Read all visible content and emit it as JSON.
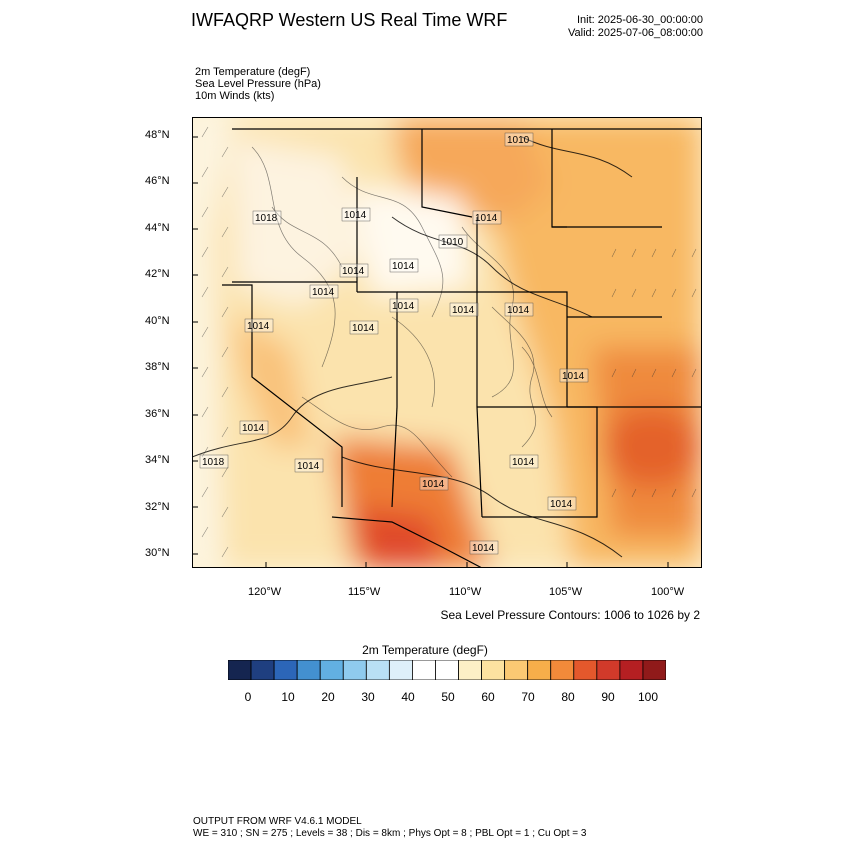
{
  "header": {
    "title": "IWFAQRP Western US Real Time WRF",
    "init": "Init: 2025-06-30_00:00:00",
    "valid": "Valid: 2025-07-06_08:00:00"
  },
  "fields": {
    "line1": "2m Temperature   (degF)",
    "line2": "Sea Level Pressure   (hPa)",
    "line3": "10m Winds   (kts)"
  },
  "axes": {
    "lat_labels": [
      "48°N",
      "46°N",
      "44°N",
      "42°N",
      "40°N",
      "38°N",
      "36°N",
      "34°N",
      "32°N",
      "30°N"
    ],
    "lon_labels": [
      "120°W",
      "115°W",
      "110°W",
      "105°W",
      "100°W"
    ]
  },
  "isobar_labels": [
    "1010",
    "1018",
    "1014",
    "1014",
    "1010",
    "1014",
    "1014",
    "1014",
    "1014",
    "1014",
    "1014",
    "1014",
    "1014",
    "1014",
    "1014",
    "1014",
    "1018",
    "1014",
    "1014",
    "1014",
    "1014"
  ],
  "contour_note": "Sea Level Pressure Contours: 1006 to 1026 by 2",
  "colorbar": {
    "title": "2m Temperature  (degF)",
    "labels": [
      "0",
      "10",
      "20",
      "30",
      "40",
      "50",
      "60",
      "70",
      "80",
      "90",
      "100"
    ],
    "colors": [
      "#152550",
      "#1f3f80",
      "#2c66b8",
      "#4390d0",
      "#62b0e2",
      "#8fcbee",
      "#b9e0f5",
      "#def0fa",
      "#ffffff",
      "#ffffff",
      "#fdf0c6",
      "#fde2a0",
      "#fbc973",
      "#f7ae4a",
      "#f28a3a",
      "#e4582c",
      "#d13a2a",
      "#b51f22",
      "#901a1a"
    ]
  },
  "footer": {
    "line1": "OUTPUT FROM WRF V4.6.1 MODEL",
    "line2": "WE = 310 ; SN = 275 ; Levels = 38 ; Dis = 8km ; Phys Opt = 8 ; PBL Opt = 1 ; Cu Opt = 3"
  }
}
